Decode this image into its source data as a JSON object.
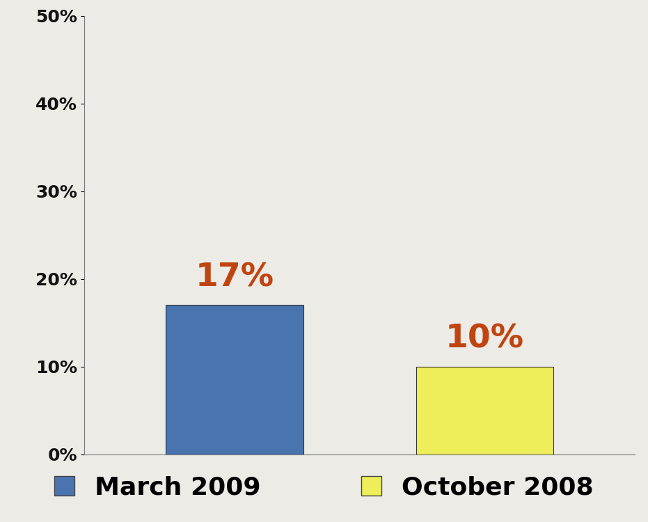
{
  "chart_data": {
    "type": "bar",
    "categories": [
      "March 2009",
      "October 2008"
    ],
    "values": [
      17,
      10
    ],
    "colors": [
      "#4a74b0",
      "#eeee5a"
    ],
    "data_labels": true,
    "value_labels": [
      "17%",
      "10%"
    ],
    "ylim": [
      0,
      50
    ],
    "yticks": [
      {
        "value": 0,
        "label": "0%"
      },
      {
        "value": 10,
        "label": "10%"
      },
      {
        "value": 20,
        "label": "20%"
      },
      {
        "value": 30,
        "label": "30%"
      },
      {
        "value": 40,
        "label": "40%"
      },
      {
        "value": 50,
        "label": "50%"
      }
    ],
    "tick_labels": "y",
    "legend": "lower center",
    "grid": false
  }
}
